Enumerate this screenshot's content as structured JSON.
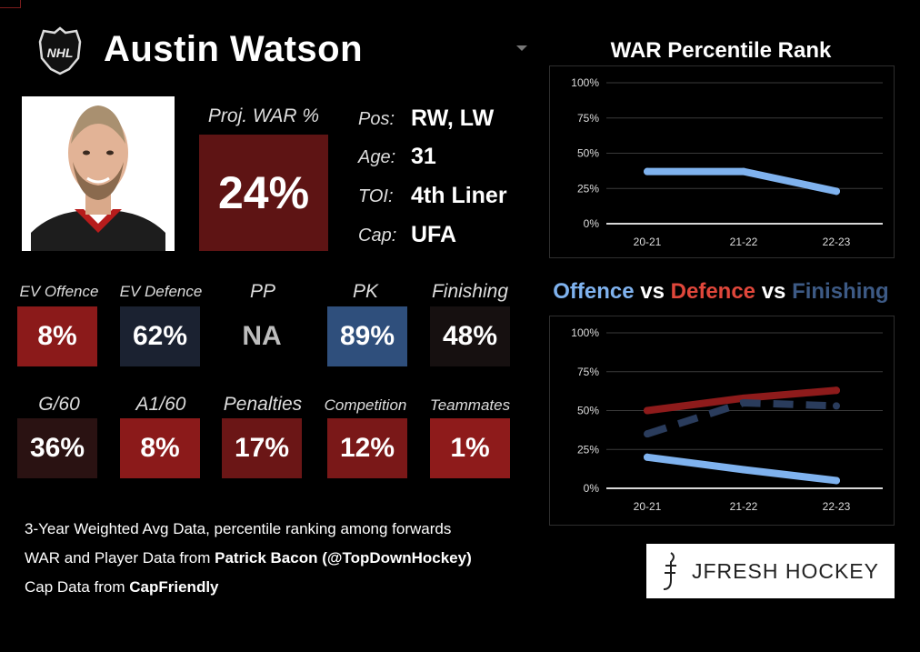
{
  "player": {
    "name": "Austin Watson",
    "logo": "nhl-shield-icon",
    "photo": "player-headshot"
  },
  "proj_war": {
    "label": "Proj. WAR %",
    "value": "24%"
  },
  "info": [
    {
      "label": "Pos:",
      "value": "RW, LW"
    },
    {
      "label": "Age:",
      "value": "31"
    },
    {
      "label": "TOI:",
      "value": "4th Liner"
    },
    {
      "label": "Cap:",
      "value": "UFA"
    }
  ],
  "stats_row1": [
    {
      "label": "EV Offence",
      "value": "8%",
      "color": "#8b1a1a"
    },
    {
      "label": "EV Defence",
      "value": "62%",
      "color": "#1b2231"
    },
    {
      "label": "PP",
      "value": "NA",
      "color": "#000000"
    },
    {
      "label": "PK",
      "value": "89%",
      "color": "#2f4f7c"
    },
    {
      "label": "Finishing",
      "value": "48%",
      "color": "#161010"
    }
  ],
  "stats_row2": [
    {
      "label": "G/60",
      "value": "36%",
      "color": "#2a1212"
    },
    {
      "label": "A1/60",
      "value": "8%",
      "color": "#8b1a1a"
    },
    {
      "label": "Penalties",
      "value": "17%",
      "color": "#6b1616"
    },
    {
      "label": "Competition",
      "value": "12%",
      "color": "#7a1818"
    },
    {
      "label": "Teammates",
      "value": "1%",
      "color": "#8e1b1b"
    }
  ],
  "footer": {
    "line1": "3-Year Weighted Avg Data, percentile ranking among forwards",
    "line2_prefix": "WAR and Player Data from ",
    "line2_bold": "Patrick Bacon (@TopDownHockey)",
    "line3_prefix": "Cap Data from ",
    "line3_bold": "CapFriendly"
  },
  "brand": {
    "text": "JFRESH HOCKEY",
    "icon": "jfresh-logo-icon"
  },
  "chart_data": [
    {
      "type": "line",
      "title": "WAR Percentile Rank",
      "categories": [
        "20-21",
        "21-22",
        "22-23"
      ],
      "yticks": [
        "100%",
        "75%",
        "50%",
        "25%",
        "0%"
      ],
      "ylim": [
        0,
        100
      ],
      "grid": true,
      "series": [
        {
          "values": [
            37,
            37,
            23
          ],
          "color": "#7fb2ee",
          "dash": "solid"
        }
      ]
    },
    {
      "type": "line",
      "title_parts": [
        {
          "text": "Offence",
          "color": "#7fb2ee"
        },
        {
          "text": " vs ",
          "color": "#ffffff"
        },
        {
          "text": "Defence",
          "color": "#e0473b"
        },
        {
          "text": " vs ",
          "color": "#ffffff"
        },
        {
          "text": "Finishing",
          "color": "#3d5a85"
        }
      ],
      "categories": [
        "20-21",
        "21-22",
        "22-23"
      ],
      "yticks": [
        "100%",
        "75%",
        "50%",
        "25%",
        "0%"
      ],
      "ylim": [
        0,
        100
      ],
      "grid": true,
      "series": [
        {
          "values": [
            20,
            12,
            5
          ],
          "color": "#7fb2ee",
          "dash": "solid"
        },
        {
          "values": [
            50,
            58,
            63
          ],
          "color": "#8e1b1b",
          "dash": "solid"
        },
        {
          "values": [
            35,
            55,
            53
          ],
          "color": "#2a3c5c",
          "dash": "dashed"
        }
      ]
    }
  ]
}
